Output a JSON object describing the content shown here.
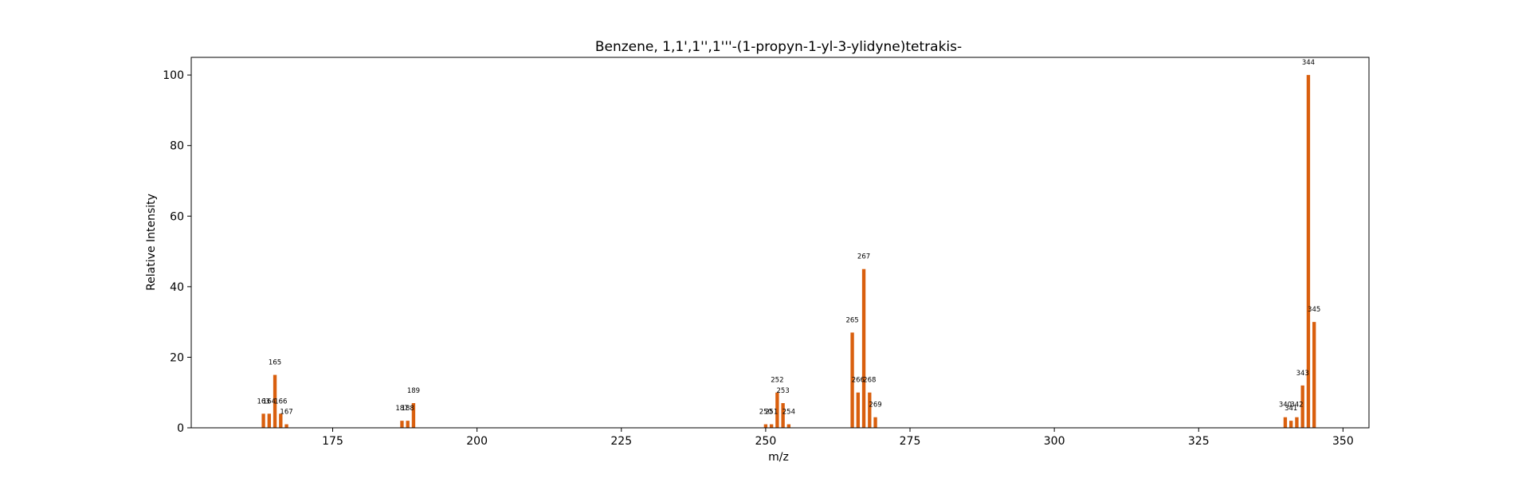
{
  "chart_data": {
    "type": "bar",
    "title": "Benzene, 1,1',1'',1'''-(1-propyn-1-yl-3-ylidyne)tetrakis-",
    "xlabel": "m/z",
    "ylabel": "Relative Intensity",
    "xlim": [
      150.5,
      354.5
    ],
    "ylim": [
      0,
      105
    ],
    "xticks": [
      175,
      200,
      225,
      250,
      275,
      300,
      325,
      350
    ],
    "yticks": [
      0,
      20,
      40,
      60,
      80,
      100
    ],
    "grid": false,
    "bar_color": "#d95f0e",
    "x": [
      163,
      164,
      165,
      166,
      167,
      187,
      188,
      189,
      250,
      251,
      252,
      253,
      254,
      265,
      266,
      267,
      268,
      269,
      340,
      341,
      342,
      343,
      344,
      345
    ],
    "values": [
      4,
      4,
      15,
      4,
      1,
      2,
      2,
      7,
      1,
      1,
      10,
      7,
      1,
      27,
      10,
      45,
      10,
      3,
      3,
      2,
      3,
      12,
      100,
      30
    ],
    "labels": [
      "163",
      "164",
      "165",
      "166",
      "167",
      "187",
      "188",
      "189",
      "250",
      "251",
      "252",
      "253",
      "254",
      "265",
      "266",
      "267",
      "268",
      "269",
      "340",
      "341",
      "342",
      "343",
      "344",
      "345"
    ]
  }
}
